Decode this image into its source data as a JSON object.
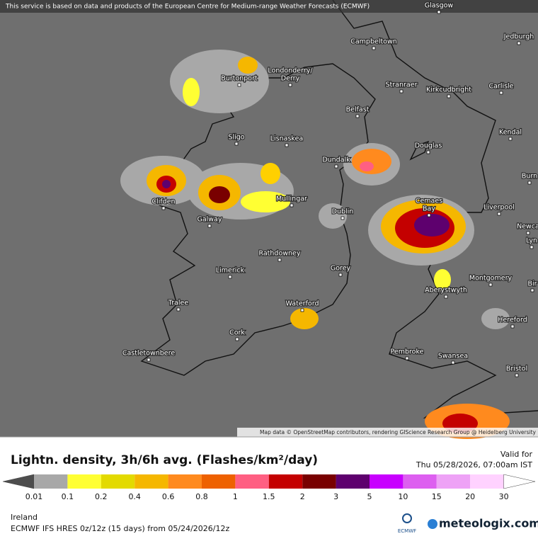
{
  "header": {
    "notice": "This service is based on data and products of the European Centre for Medium-range Weather Forecasts (ECMWF)"
  },
  "map": {
    "attribution": "Map data © OpenStreetMap contributors, rendering GIScience Research Group @ Heidelberg University",
    "places": [
      {
        "lines": [
          "Glasgow"
        ]
      },
      {
        "lines": [
          "Jedburgh"
        ]
      },
      {
        "lines": [
          "Campbeltown"
        ]
      },
      {
        "lines": [
          "Londonderry/",
          "Derry"
        ]
      },
      {
        "lines": [
          "Burtonport"
        ]
      },
      {
        "lines": [
          "Stranraer"
        ]
      },
      {
        "lines": [
          "Kirkcudbright"
        ]
      },
      {
        "lines": [
          "Carlisle"
        ]
      },
      {
        "lines": [
          "Belfast"
        ]
      },
      {
        "lines": [
          "Kendal"
        ]
      },
      {
        "lines": [
          "Sligo"
        ]
      },
      {
        "lines": [
          "Lisnaskea"
        ]
      },
      {
        "lines": [
          "Douglas"
        ]
      },
      {
        "lines": [
          "Dundalk"
        ]
      },
      {
        "lines": [
          "Burn"
        ]
      },
      {
        "lines": [
          "Clifden"
        ]
      },
      {
        "lines": [
          "Cemaes",
          "Bay"
        ]
      },
      {
        "lines": [
          "Liverpool"
        ]
      },
      {
        "lines": [
          "Dublin"
        ]
      },
      {
        "lines": [
          "Mullingar"
        ]
      },
      {
        "lines": [
          "Galway"
        ]
      },
      {
        "lines": [
          "Newca"
        ]
      },
      {
        "lines": [
          "Lyn"
        ]
      },
      {
        "lines": [
          "Rathdowney"
        ]
      },
      {
        "lines": [
          "Limerick"
        ]
      },
      {
        "lines": [
          "Gorey"
        ]
      },
      {
        "lines": [
          "Montgomery"
        ]
      },
      {
        "lines": [
          "Bir"
        ]
      },
      {
        "lines": [
          "Aberystwyth"
        ]
      },
      {
        "lines": [
          "Tralee"
        ]
      },
      {
        "lines": [
          "Waterford"
        ]
      },
      {
        "lines": [
          "Hereford"
        ]
      },
      {
        "lines": [
          "Cork"
        ]
      },
      {
        "lines": [
          "Pembroke"
        ]
      },
      {
        "lines": [
          "Castletownbere"
        ]
      },
      {
        "lines": [
          "Swansea"
        ]
      },
      {
        "lines": [
          "Bristol"
        ]
      }
    ]
  },
  "legend": {
    "title": "Lightn. density, 3h/6h avg. (Flashes/km²/day)",
    "valid_label": "Valid for",
    "valid_time": "Thu 05/28/2026, 07:00am IST",
    "ticks": [
      "0.01",
      "0.1",
      "0.2",
      "0.4",
      "0.6",
      "0.8",
      "1",
      "1.5",
      "2",
      "3",
      "5",
      "10",
      "15",
      "20",
      "30"
    ],
    "colors": [
      "#4d4d4d",
      "#a8a8a8",
      "#ffff33",
      "#e3da00",
      "#f5b700",
      "#ff8a1e",
      "#ee6100",
      "#ff5f82",
      "#c40000",
      "#790000",
      "#5e006e",
      "#c800ff",
      "#dd5ff0",
      "#eea2f6",
      "#ffd2ff",
      "#ffffff"
    ]
  },
  "footer": {
    "region": "Ireland",
    "model": "ECMWF IFS HRES 0z/12z (15 days) from  05/24/2026/12z",
    "ecmwf_logo": "ECMWF",
    "brand": "meteologix.com"
  }
}
